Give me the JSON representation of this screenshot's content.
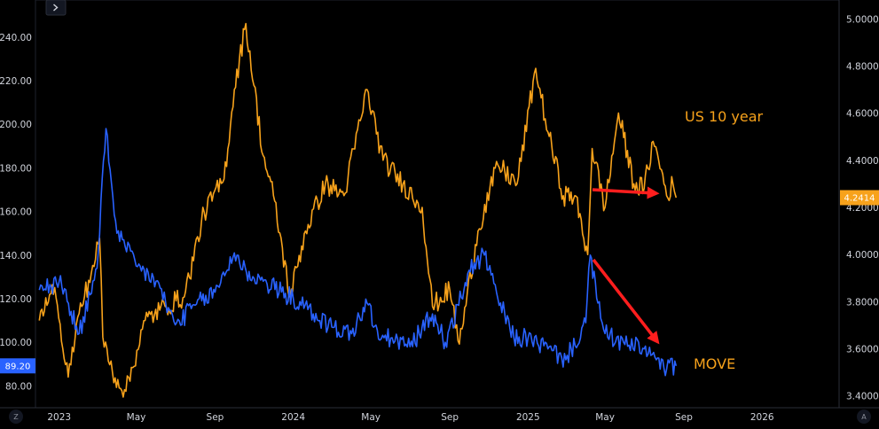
{
  "chart_data": {
    "type": "line",
    "colors": {
      "move": "#2962ff",
      "us10y": "#f7a21b",
      "arrow": "#ff1e1e",
      "background": "#000000"
    },
    "x_ticks": [
      "2023",
      "May",
      "Sep",
      "2024",
      "May",
      "Sep",
      "2025",
      "May",
      "Sep",
      "2026"
    ],
    "left_axis": {
      "ylim": [
        70,
        257
      ],
      "ticks": [
        "80.00",
        "100.00",
        "120.00",
        "140.00",
        "160.00",
        "180.00",
        "200.00",
        "220.00",
        "240.00"
      ],
      "tick_values": [
        80,
        100,
        120,
        140,
        160,
        180,
        200,
        220,
        240
      ],
      "last_value_label": "89.20",
      "last_value": 89.2
    },
    "right_axis": {
      "ylim": [
        3.35,
        5.08
      ],
      "ticks": [
        "3.4000",
        "3.6000",
        "3.8000",
        "4.0000",
        "4.2000",
        "4.4000",
        "4.6000",
        "4.8000",
        "5.0000"
      ],
      "tick_values": [
        3.4,
        3.6,
        3.8,
        4.0,
        4.2,
        4.4,
        4.6,
        4.8,
        5.0
      ],
      "last_value_label": "4.2414",
      "last_value": 4.2414
    },
    "annotations": {
      "us10y_label": "US 10 year",
      "move_label": "MOVE"
    },
    "series": [
      {
        "axis": "left",
        "x": [
          "2022-12-01",
          "2023-01-01",
          "2023-02-01",
          "2023-03-01",
          "2023-03-15",
          "2023-04-01",
          "2023-05-01",
          "2023-06-01",
          "2023-07-01",
          "2023-08-01",
          "2023-09-01",
          "2023-10-01",
          "2023-10-20",
          "2023-11-15",
          "2024-01-01",
          "2024-02-01",
          "2024-03-01",
          "2024-04-01",
          "2024-04-25",
          "2024-05-15",
          "2024-06-01",
          "2024-07-01",
          "2024-08-05",
          "2024-08-25",
          "2024-09-15",
          "2024-10-01",
          "2024-10-25",
          "2024-11-15",
          "2024-12-10",
          "2025-01-01",
          "2025-02-01",
          "2025-03-01",
          "2025-04-01",
          "2025-04-08",
          "2025-04-20",
          "2025-05-01",
          "2025-06-01",
          "2025-07-01",
          "2025-07-20",
          "2025-08-01",
          "2025-08-20"
        ],
        "values": [
          124,
          128,
          104,
          134,
          198,
          150,
          135,
          128,
          108,
          117,
          123,
          141,
          132,
          128,
          120,
          113,
          107,
          104,
          118,
          101,
          102,
          98,
          113,
          100,
          117,
          133,
          140,
          120,
          102,
          102,
          97,
          92,
          109,
          140,
          118,
          104,
          99,
          97,
          92,
          88,
          89.2
        ]
      },
      {
        "axis": "right",
        "x": [
          "2022-12-01",
          "2022-12-25",
          "2023-01-15",
          "2023-02-01",
          "2023-02-20",
          "2023-03-05",
          "2023-03-10",
          "2023-03-25",
          "2023-04-15",
          "2023-05-15",
          "2023-06-15",
          "2023-07-15",
          "2023-08-15",
          "2023-09-15",
          "2023-10-01",
          "2023-10-19",
          "2023-11-15",
          "2023-12-01",
          "2023-12-27",
          "2024-01-20",
          "2024-02-20",
          "2024-03-20",
          "2024-04-25",
          "2024-05-20",
          "2024-06-20",
          "2024-07-20",
          "2024-08-05",
          "2024-09-01",
          "2024-09-16",
          "2024-10-15",
          "2024-11-15",
          "2024-12-15",
          "2025-01-13",
          "2025-02-01",
          "2025-02-25",
          "2025-03-15",
          "2025-04-04",
          "2025-04-11",
          "2025-05-01",
          "2025-05-22",
          "2025-06-15",
          "2025-07-01",
          "2025-07-15",
          "2025-07-28",
          "2025-08-05",
          "2025-08-15",
          "2025-08-20"
        ],
        "values": [
          3.72,
          3.86,
          3.48,
          3.75,
          3.92,
          4.07,
          3.65,
          3.5,
          3.42,
          3.72,
          3.78,
          3.82,
          4.18,
          4.32,
          4.7,
          4.98,
          4.42,
          4.25,
          3.82,
          4.1,
          4.3,
          4.25,
          4.7,
          4.4,
          4.3,
          4.2,
          3.78,
          3.85,
          3.62,
          4.1,
          4.38,
          4.3,
          4.79,
          4.52,
          4.25,
          4.25,
          4.0,
          4.45,
          4.2,
          4.6,
          4.3,
          4.28,
          4.48,
          4.36,
          4.25,
          4.3,
          4.2414
        ]
      }
    ]
  }
}
